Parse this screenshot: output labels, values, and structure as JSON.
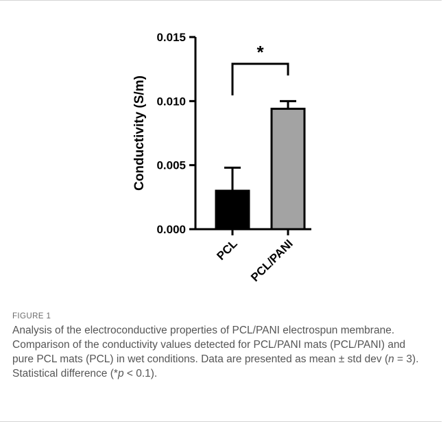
{
  "chart_data": {
    "type": "bar",
    "categories": [
      "PCL",
      "PCL/PANI"
    ],
    "values": [
      0.003,
      0.0094
    ],
    "errors": [
      0.0018,
      0.0006
    ],
    "colors": [
      "#000000",
      "#a3a3a3"
    ],
    "title": "",
    "xlabel": "",
    "ylabel": "Conductivity (S/m)",
    "ylim": [
      0,
      0.015
    ],
    "yticks": [
      0.0,
      0.005,
      0.01,
      0.015
    ],
    "ytick_labels": [
      "0.000",
      "0.005",
      "0.010",
      "0.015"
    ],
    "grid": false,
    "significance": {
      "between": [
        "PCL",
        "PCL/PANI"
      ],
      "label": "*"
    }
  },
  "caption": {
    "label": "FIGURE 1",
    "text_1": "Analysis of the electroconductive properties of PCL/PANI electrospun membrane. Comparison of the conductivity values detected for PCL/PANI mats (PCL/PANI) and pure PCL mats (PCL) in wet conditions. Data are presented as mean ",
    "pm": "±",
    "text_2": " std dev (",
    "n_var": "n",
    "text_3": " = 3). Statistical difference (*",
    "p_var": "p",
    "text_4": " < 0.1)."
  }
}
